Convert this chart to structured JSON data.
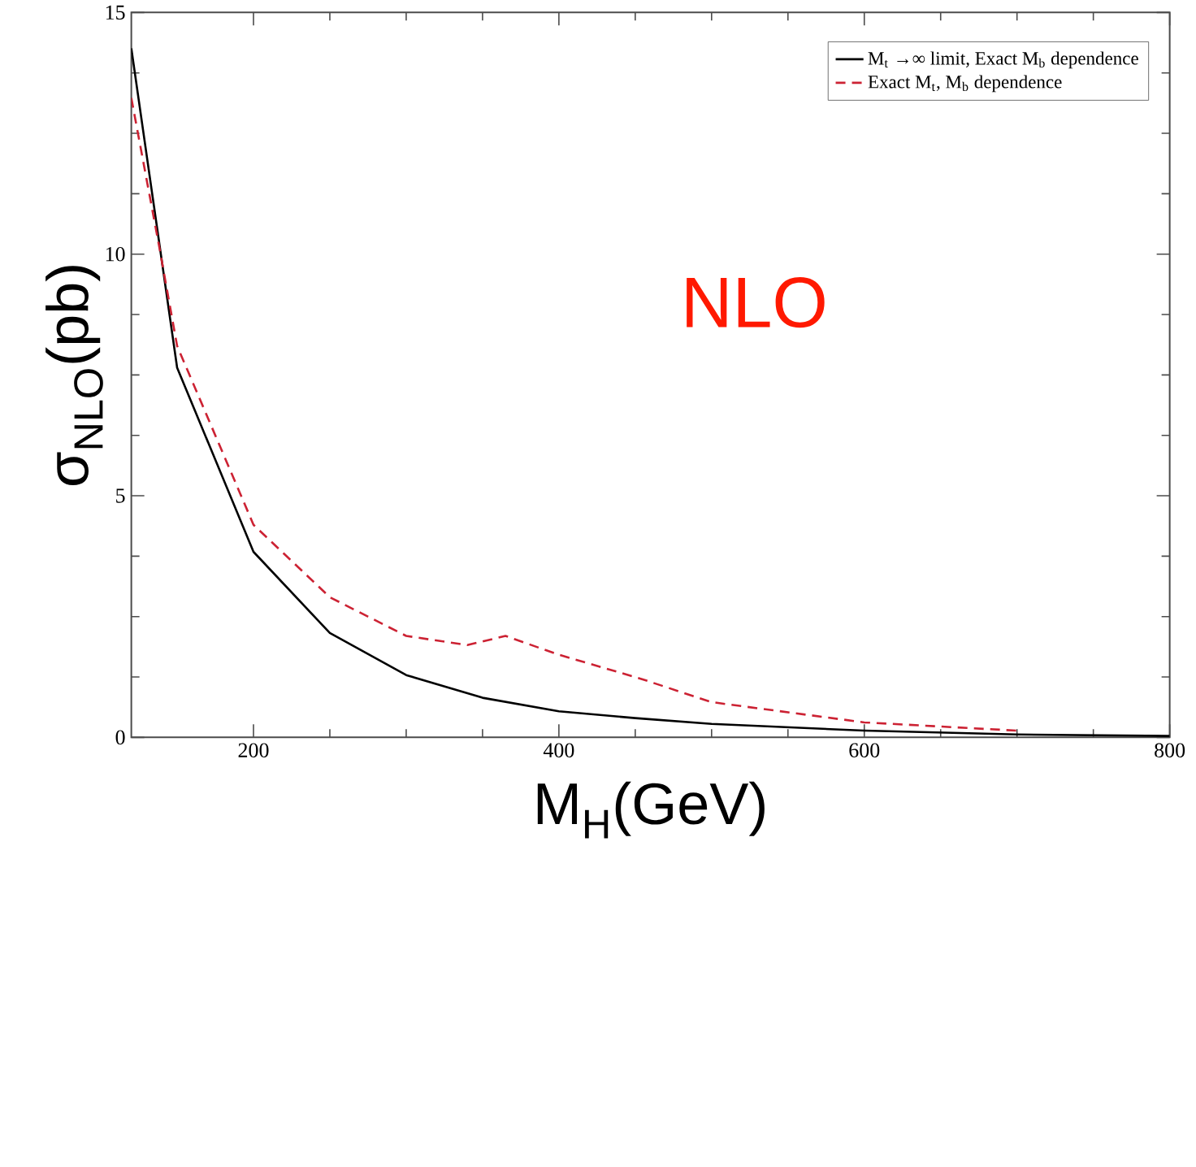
{
  "chart_data": {
    "type": "line",
    "xlabel": "M$_{H}$(GeV)",
    "ylabel": "σ$_{NLO}$(pb)",
    "annotations": [
      "NLO"
    ],
    "xlim": [
      120,
      800
    ],
    "ylim": [
      0,
      15
    ],
    "xticks": [
      200,
      400,
      600,
      800
    ],
    "yticks": [
      0,
      5,
      10,
      15
    ],
    "grid": false,
    "legend": "top right",
    "marker": "none",
    "series": [
      {
        "name": "M$_{t}$ →∞ limit, Exact M$_{b}$ dependence",
        "color": "#000000",
        "line_style": "solid",
        "x": [
          120,
          150,
          200,
          250,
          300,
          350,
          400,
          450,
          500,
          600,
          700,
          800
        ],
        "values": [
          14.26,
          7.65,
          3.84,
          2.16,
          1.29,
          0.82,
          0.54,
          0.4,
          0.28,
          0.14,
          0.06,
          0.03
        ]
      },
      {
        "name": "Exact M$_{t}$, M$_{b}$ dependence",
        "color": "#cc2233",
        "line_style": "dashed",
        "x": [
          120,
          138,
          150,
          200,
          250,
          300,
          340,
          365,
          400,
          454,
          500,
          600,
          700
        ],
        "values": [
          13.23,
          10.2,
          8.1,
          4.4,
          2.9,
          2.1,
          1.91,
          2.1,
          1.71,
          1.21,
          0.73,
          0.31,
          0.14
        ]
      }
    ]
  }
}
